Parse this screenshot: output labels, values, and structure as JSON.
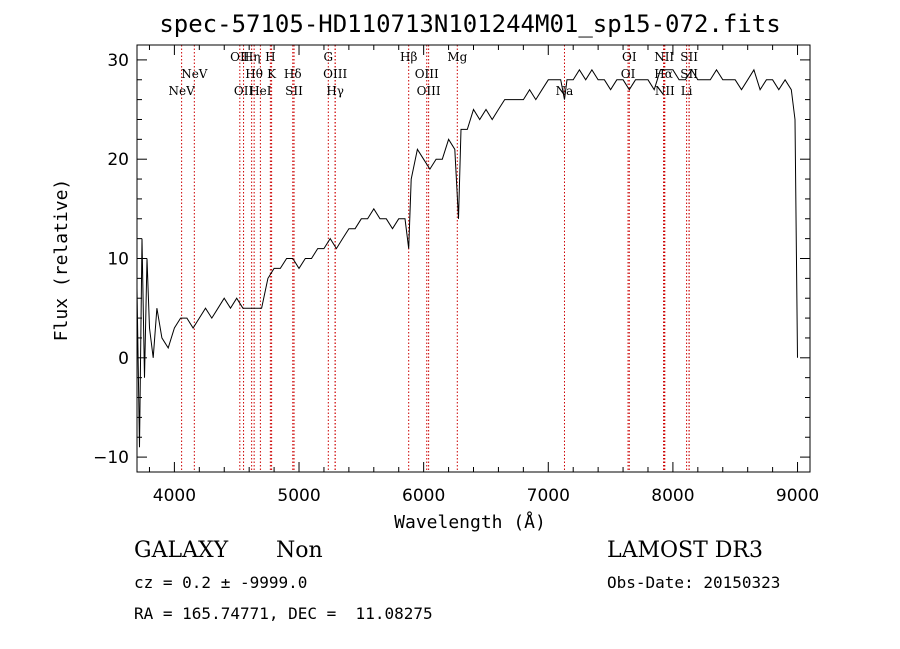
{
  "chart_data": {
    "type": "line",
    "title": "spec-57105-HD110713N101244M01_sp15-072.fits",
    "xlabel": "Wavelength (Å)",
    "ylabel": "Flux (relative)",
    "xlim": [
      3700,
      9100
    ],
    "ylim": [
      -11.5,
      31.5
    ],
    "xticks": [
      4000,
      5000,
      6000,
      7000,
      8000,
      9000
    ],
    "yticks": [
      -10,
      0,
      10,
      20,
      30
    ],
    "grid": false,
    "series": [
      {
        "x": [
          3700,
          3720,
          3740,
          3760,
          3780,
          3800,
          3830,
          3860,
          3900,
          3950,
          4000,
          4050,
          4100,
          4150,
          4200,
          4250,
          4300,
          4350,
          4400,
          4450,
          4500,
          4550,
          4600,
          4650,
          4700,
          4750,
          4800,
          4850,
          4900,
          4950,
          5000,
          5050,
          5100,
          5150,
          5200,
          5250,
          5300,
          5350,
          5400,
          5450,
          5500,
          5550,
          5600,
          5650,
          5700,
          5750,
          5800,
          5850,
          5880,
          5900,
          5950,
          6000,
          6050,
          6100,
          6150,
          6200,
          6250,
          6280,
          6300,
          6350,
          6400,
          6450,
          6500,
          6550,
          6600,
          6650,
          6700,
          6750,
          6800,
          6850,
          6900,
          6950,
          7000,
          7050,
          7100,
          7130,
          7150,
          7200,
          7250,
          7300,
          7350,
          7400,
          7450,
          7500,
          7550,
          7600,
          7650,
          7700,
          7750,
          7800,
          7850,
          7900,
          7950,
          8000,
          8050,
          8100,
          8150,
          8200,
          8250,
          8300,
          8350,
          8400,
          8450,
          8500,
          8550,
          8600,
          8650,
          8700,
          8750,
          8800,
          8850,
          8900,
          8950,
          8980,
          9000
        ],
        "y": [
          7,
          -9,
          12,
          -2,
          10,
          3,
          0,
          5,
          2,
          1,
          3,
          4,
          4,
          3,
          4,
          5,
          4,
          5,
          6,
          5,
          6,
          5,
          5,
          5,
          5,
          8,
          9,
          9,
          10,
          10,
          9,
          10,
          10,
          11,
          11,
          12,
          11,
          12,
          13,
          13,
          14,
          14,
          15,
          14,
          14,
          13,
          14,
          14,
          11,
          18,
          21,
          20,
          19,
          20,
          20,
          22,
          21,
          14,
          23,
          23,
          25,
          24,
          25,
          24,
          25,
          26,
          26,
          26,
          26,
          27,
          26,
          27,
          28,
          28,
          28,
          26,
          28,
          28,
          29,
          28,
          29,
          28,
          28,
          27,
          28,
          28,
          27,
          28,
          28,
          28,
          27,
          29,
          29,
          29,
          28,
          28,
          29,
          28,
          28,
          28,
          29,
          28,
          28,
          28,
          27,
          28,
          29,
          27,
          28,
          28,
          27,
          28,
          27,
          24,
          0
        ]
      }
    ],
    "line_markers": [
      {
        "w": 4058,
        "label": "NeV",
        "row": 3
      },
      {
        "w": 4160,
        "label": "NeV",
        "row": 2
      },
      {
        "w": 4525,
        "label": "OII",
        "row": 1
      },
      {
        "w": 4620,
        "label": "Hη",
        "row": 1
      },
      {
        "w": 4555,
        "label": "OII",
        "row": 3
      },
      {
        "w": 4640,
        "label": "Hθ",
        "row": 2
      },
      {
        "w": 4690,
        "label": "HeI",
        "row": 3
      },
      {
        "w": 4770,
        "label": "H",
        "row": 1
      },
      {
        "w": 4780,
        "label": "K",
        "row": 2
      },
      {
        "w": 4950,
        "label": "Hδ",
        "row": 2
      },
      {
        "w": 4960,
        "label": "SII",
        "row": 3
      },
      {
        "w": 5235,
        "label": "G",
        "row": 1
      },
      {
        "w": 5290,
        "label": "OIII",
        "row": 2
      },
      {
        "w": 5290,
        "label": "Hγ",
        "row": 3
      },
      {
        "w": 5880,
        "label": "Hβ",
        "row": 1
      },
      {
        "w": 6025,
        "label": "OIII",
        "row": 2
      },
      {
        "w": 6040,
        "label": "OIII",
        "row": 3
      },
      {
        "w": 6270,
        "label": "Mg",
        "row": 1
      },
      {
        "w": 7130,
        "label": "Na",
        "row": 3
      },
      {
        "w": 7650,
        "label": "OI",
        "row": 1
      },
      {
        "w": 7640,
        "label": "OI",
        "row": 2
      },
      {
        "w": 7930,
        "label": "NII",
        "row": 1
      },
      {
        "w": 7925,
        "label": "Hα",
        "row": 2
      },
      {
        "w": 7935,
        "label": "NII",
        "row": 3
      },
      {
        "w": 8130,
        "label": "SII",
        "row": 1
      },
      {
        "w": 8130,
        "label": "SII",
        "row": 2
      },
      {
        "w": 8110,
        "label": "Li",
        "row": 3
      }
    ],
    "marker_color": "#cc0000"
  },
  "info": {
    "class_label": "GALAXY",
    "subclass_label": "Non",
    "survey": "LAMOST DR3",
    "cz": "cz = 0.2 ± -9999.0",
    "obs_date": "Obs-Date: 20150323",
    "coords": "RA = 165.74771, DEC =  11.08275"
  }
}
